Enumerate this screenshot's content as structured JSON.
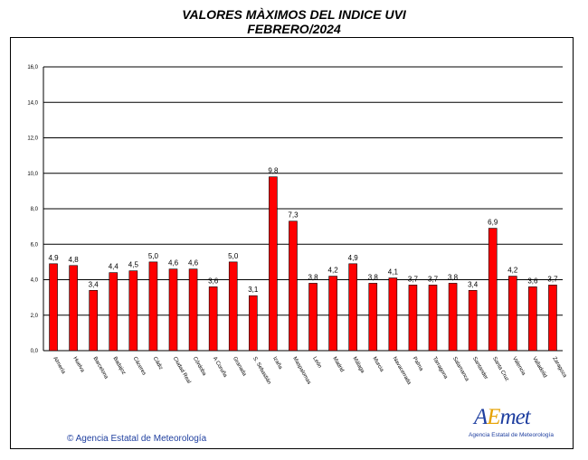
{
  "title_line1": "VALORES MÀXIMOS DEL INDICE UVI",
  "title_line2": "FEBRERO/2024",
  "credit": "© Agencia Estatal de Meteorología",
  "logo": {
    "word_a": "A",
    "word_e": "E",
    "word_rest": "met",
    "subtitle": "Agencia Estatal de Meteorología"
  },
  "colors": {
    "bar": "#ff0000",
    "bar_edge": "#000000",
    "grid": "#000000",
    "credit": "#1f3f9f"
  },
  "chart_data": {
    "type": "bar",
    "title": "VALORES MÀXIMOS DEL INDICE UVI",
    "subtitle": "FEBRERO/2024",
    "xlabel": "",
    "ylabel": "",
    "ylim": [
      0,
      16
    ],
    "ytick_labels": [
      "0,0",
      "2,0",
      "4,0",
      "6,0",
      "8,0",
      "10,0",
      "12,0",
      "14,0",
      "16,0"
    ],
    "grid": true,
    "categories": [
      "Almería",
      "Huelva",
      "Barcelona",
      "Badajoz",
      "Cáceres",
      "Cádiz",
      "Ciudad Real",
      "Córdoba",
      "A Coruña",
      "Granada",
      "S. Sebastián",
      "Izaña",
      "Maspalomas",
      "León",
      "Madrid",
      "Málaga",
      "Murcia",
      "Navacerrada",
      "Palma",
      "Tarragona",
      "Salamanca",
      "Santander",
      "Santa Cruz",
      "Valencia",
      "Valladolid",
      "Zaragoza"
    ],
    "values": [
      4.9,
      4.8,
      3.4,
      4.4,
      4.5,
      5.0,
      4.6,
      4.6,
      3.6,
      5.0,
      3.1,
      9.8,
      7.3,
      3.8,
      4.2,
      4.9,
      3.8,
      4.1,
      3.7,
      3.7,
      3.8,
      3.4,
      6.9,
      4.2,
      3.6,
      3.7
    ],
    "value_labels": [
      "4,9",
      "4,8",
      "3,4",
      "4,4",
      "4,5",
      "5,0",
      "4,6",
      "4,6",
      "3,6",
      "5,0",
      "3,1",
      "9,8",
      "7,3",
      "3,8",
      "4,2",
      "4,9",
      "3,8",
      "4,1",
      "3,7",
      "3,7",
      "3,8",
      "3,4",
      "6,9",
      "4,2",
      "3,6",
      "3,7"
    ]
  }
}
